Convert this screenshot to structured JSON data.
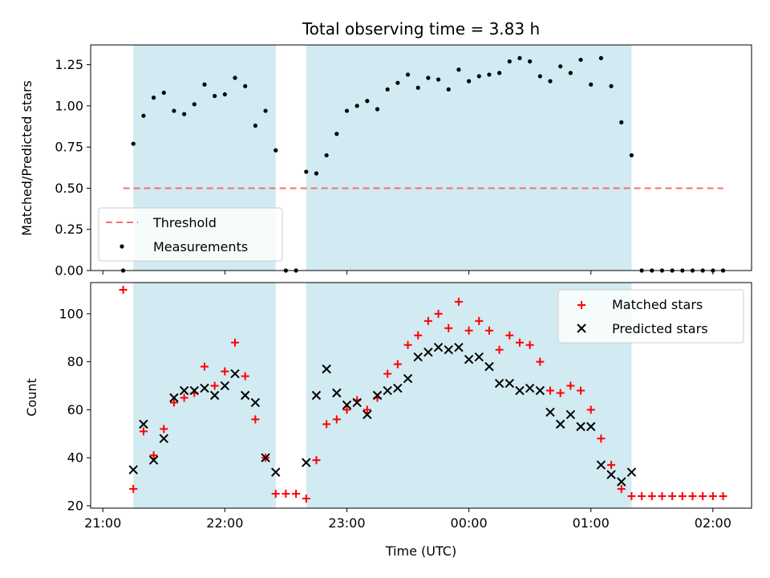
{
  "chart_data": {
    "type": "scatter",
    "title": "Total observing time = 3.83 h",
    "xlabel": "Time (UTC)",
    "x_tick_labels": [
      "21:00",
      "22:00",
      "23:00",
      "00:00",
      "01:00",
      "02:00"
    ],
    "x_tick_minutes": [
      0,
      60,
      120,
      180,
      240,
      300
    ],
    "xlim_minutes": [
      -6,
      319
    ],
    "x_axis_start": "21:00",
    "observing_windows": [
      {
        "start": "21:15",
        "end": "22:25"
      },
      {
        "start": "22:40",
        "end": "01:20"
      }
    ],
    "colors": {
      "window": "#add8e6",
      "threshold": "#f07070",
      "matched": "#ff0000",
      "predicted": "#000000",
      "measurements": "#000000"
    },
    "panels": [
      {
        "id": "ratio",
        "ylabel": "Matched/Predicted stars",
        "ylim": [
          0,
          1.37
        ],
        "yticks": [
          0.0,
          0.25,
          0.5,
          0.75,
          1.0,
          1.25
        ],
        "ytick_labels": [
          "0.00",
          "0.25",
          "0.50",
          "0.75",
          "1.00",
          "1.25"
        ],
        "legend_position": "lower-left",
        "threshold": {
          "name": "Threshold",
          "y": 0.5,
          "x_from": 10,
          "x_to": 305
        },
        "series": [
          {
            "name": "Measurements",
            "x": [
              10,
              15,
              20,
              25,
              30,
              35,
              40,
              45,
              50,
              55,
              60,
              65,
              70,
              75,
              80,
              85,
              90,
              95,
              100,
              105,
              110,
              115,
              120,
              125,
              130,
              135,
              140,
              145,
              150,
              155,
              160,
              165,
              170,
              175,
              180,
              185,
              190,
              195,
              200,
              205,
              210,
              215,
              220,
              225,
              230,
              235,
              240,
              245,
              250,
              255,
              260,
              265,
              270,
              275,
              280,
              285,
              290,
              295,
              300,
              305
            ],
            "y": [
              0,
              0.77,
              0.94,
              1.05,
              1.08,
              0.97,
              0.95,
              1.01,
              1.13,
              1.06,
              1.07,
              1.17,
              1.12,
              0.88,
              0.97,
              0.73,
              0,
              0,
              0.6,
              0.59,
              0.7,
              0.83,
              0.97,
              1.0,
              1.03,
              0.98,
              1.1,
              1.14,
              1.19,
              1.11,
              1.17,
              1.16,
              1.1,
              1.22,
              1.15,
              1.18,
              1.19,
              1.2,
              1.27,
              1.29,
              1.27,
              1.18,
              1.15,
              1.24,
              1.2,
              1.28,
              1.13,
              1.29,
              1.12,
              0.9,
              0.7,
              0,
              0,
              0,
              0,
              0,
              0,
              0,
              0,
              0
            ]
          }
        ]
      },
      {
        "id": "counts",
        "ylabel": "Count",
        "ylim": [
          19,
          113
        ],
        "yticks": [
          20,
          40,
          60,
          80,
          100
        ],
        "ytick_labels": [
          "20",
          "40",
          "60",
          "80",
          "100"
        ],
        "legend_position": "upper-right",
        "series": [
          {
            "name": "Matched stars",
            "marker": "plus",
            "x": [
              10,
              15,
              20,
              25,
              30,
              35,
              40,
              45,
              50,
              55,
              60,
              65,
              70,
              75,
              80,
              85,
              90,
              95,
              100,
              105,
              110,
              115,
              120,
              125,
              130,
              135,
              140,
              145,
              150,
              155,
              160,
              165,
              170,
              175,
              180,
              185,
              190,
              195,
              200,
              205,
              210,
              215,
              220,
              225,
              230,
              235,
              240,
              245,
              250,
              255,
              260,
              265,
              270,
              275,
              280,
              285,
              290,
              295,
              300,
              305
            ],
            "y": [
              110,
              27,
              51,
              41,
              52,
              63,
              65,
              67,
              78,
              70,
              76,
              88,
              74,
              56,
              40,
              25,
              25,
              25,
              23,
              39,
              54,
              56,
              60,
              64,
              60,
              65,
              75,
              79,
              87,
              91,
              97,
              100,
              94,
              105,
              93,
              97,
              93,
              85,
              91,
              88,
              87,
              80,
              68,
              67,
              70,
              68,
              60,
              48,
              37,
              27,
              24,
              24,
              24,
              24,
              24,
              24,
              24,
              24,
              24,
              24
            ]
          },
          {
            "name": "Predicted stars",
            "marker": "x",
            "x": [
              15,
              20,
              25,
              30,
              35,
              40,
              45,
              50,
              55,
              60,
              65,
              70,
              75,
              80,
              85,
              100,
              105,
              110,
              115,
              120,
              125,
              130,
              135,
              140,
              145,
              150,
              155,
              160,
              165,
              170,
              175,
              180,
              185,
              190,
              195,
              200,
              205,
              210,
              215,
              220,
              225,
              230,
              235,
              240,
              245,
              250,
              255,
              260
            ],
            "y": [
              35,
              54,
              39,
              48,
              65,
              68,
              68,
              69,
              66,
              70,
              75,
              66,
              63,
              40,
              34,
              38,
              66,
              77,
              67,
              62,
              63,
              58,
              66,
              68,
              69,
              73,
              82,
              84,
              86,
              85,
              86,
              81,
              82,
              78,
              71,
              71,
              68,
              69,
              68,
              59,
              54,
              58,
              53,
              53,
              37,
              33,
              30,
              34
            ]
          }
        ]
      }
    ]
  }
}
